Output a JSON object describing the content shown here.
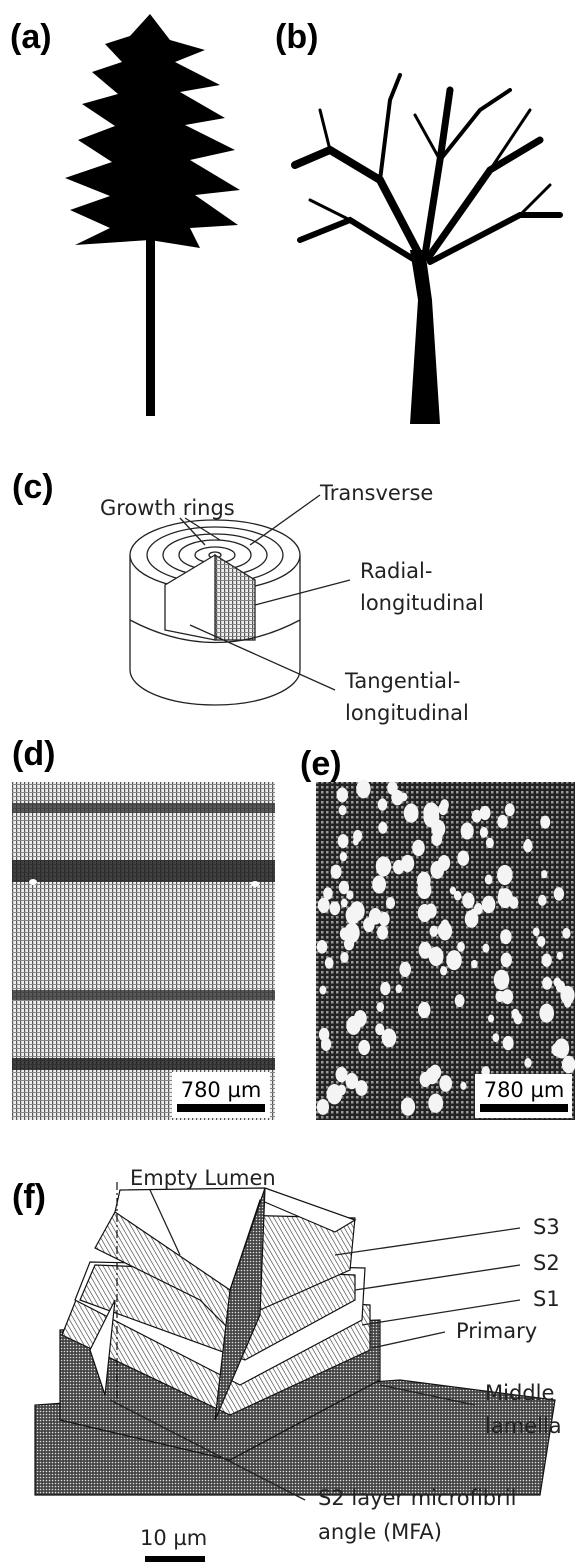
{
  "panels": {
    "a": {
      "label": "(a)"
    },
    "b": {
      "label": "(b)"
    },
    "c": {
      "label": "(c)",
      "growth_rings": "Growth rings",
      "transverse": "Transverse",
      "radial": [
        "Radial-",
        "longitudinal"
      ],
      "tangential": [
        "Tangential-",
        "longitudinal"
      ]
    },
    "d": {
      "label": "(d)",
      "scale": "780 µm"
    },
    "e": {
      "label": "(e)",
      "scale": "780 µm"
    },
    "f": {
      "label": "(f)",
      "lumen": "Empty Lumen",
      "s3": "S3",
      "s2": "S2",
      "s1": "S1",
      "primary": "Primary",
      "middle": [
        "Middle",
        "lamella"
      ],
      "mfa": [
        "S2 layer microfibril",
        "angle (MFA)"
      ],
      "scale": "10 µm"
    }
  }
}
